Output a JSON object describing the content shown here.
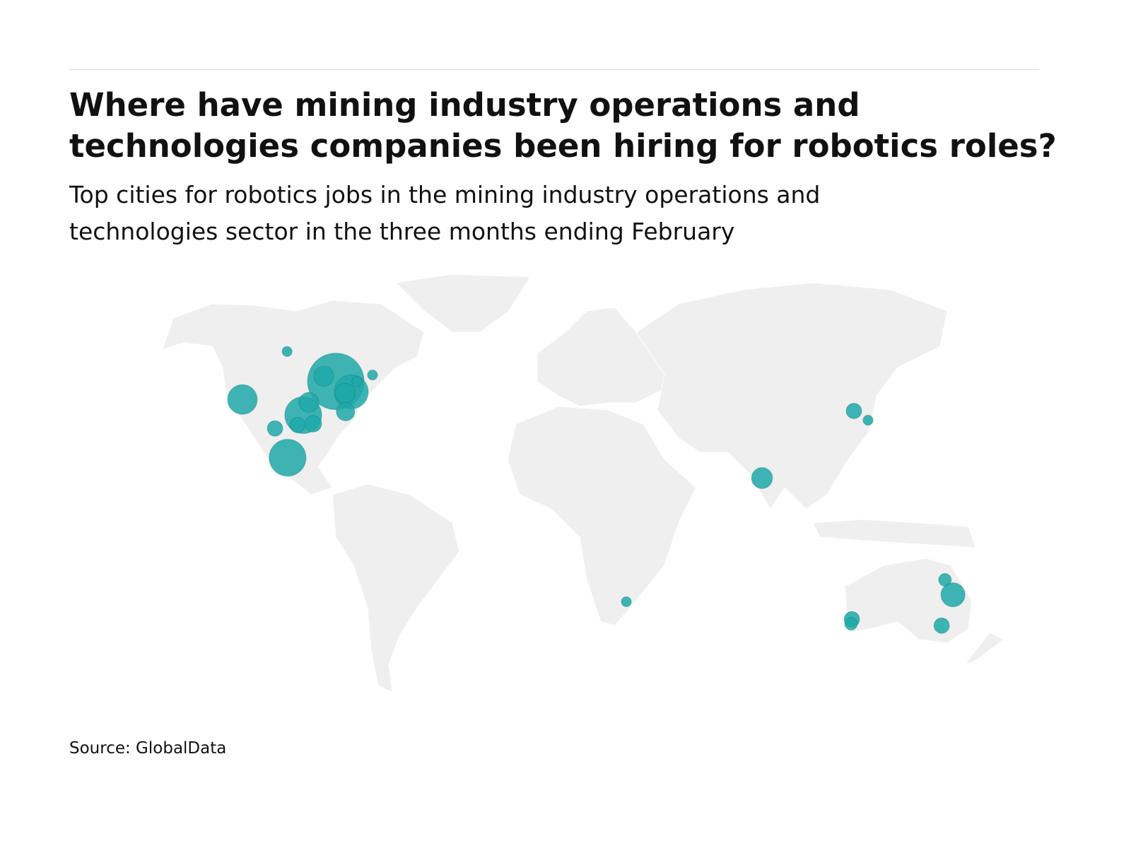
{
  "chart_data": {
    "type": "bubble-map",
    "title": "Where have mining industry operations and technologies companies been hiring for robotics roles?",
    "subtitle": "Top cities for robotics jobs in the mining industry operations and technologies sector in the three months ending February",
    "source": "Source: GlobalData",
    "color": "#1ea8a8",
    "points": [
      {
        "lon": -104.1,
        "lat": 52.8,
        "value": 5
      },
      {
        "lon": -85.1,
        "lat": 43.4,
        "value": 160
      },
      {
        "lon": -89.8,
        "lat": 45.0,
        "value": 20
      },
      {
        "lon": -79.1,
        "lat": 40.1,
        "value": 58
      },
      {
        "lon": -81.5,
        "lat": 39.7,
        "value": 20
      },
      {
        "lon": -76.9,
        "lat": 43.4,
        "value": 5
      },
      {
        "lon": -70.8,
        "lat": 45.4,
        "value": 5
      },
      {
        "lon": -97.8,
        "lat": 32.8,
        "value": 68
      },
      {
        "lon": -95.6,
        "lat": 36.8,
        "value": 20
      },
      {
        "lon": -93.9,
        "lat": 30.1,
        "value": 14
      },
      {
        "lon": -100.0,
        "lat": 29.7,
        "value": 12
      },
      {
        "lon": -81.3,
        "lat": 33.9,
        "value": 17
      },
      {
        "lon": -121.5,
        "lat": 37.7,
        "value": 44
      },
      {
        "lon": -108.8,
        "lat": 28.6,
        "value": 12
      },
      {
        "lon": -103.9,
        "lat": 19.4,
        "value": 68
      },
      {
        "lon": 81.0,
        "lat": 13.0,
        "value": 22
      },
      {
        "lon": 116.8,
        "lat": 34.1,
        "value": 12
      },
      {
        "lon": 122.3,
        "lat": 31.2,
        "value": 5
      },
      {
        "lon": 28.1,
        "lat": -25.9,
        "value": 5
      },
      {
        "lon": 116.0,
        "lat": -31.4,
        "value": 12
      },
      {
        "lon": 115.7,
        "lat": -32.8,
        "value": 8
      },
      {
        "lon": 152.3,
        "lat": -19.0,
        "value": 8
      },
      {
        "lon": 155.4,
        "lat": -23.7,
        "value": 29
      },
      {
        "lon": 151.0,
        "lat": -33.4,
        "value": 12
      }
    ]
  }
}
